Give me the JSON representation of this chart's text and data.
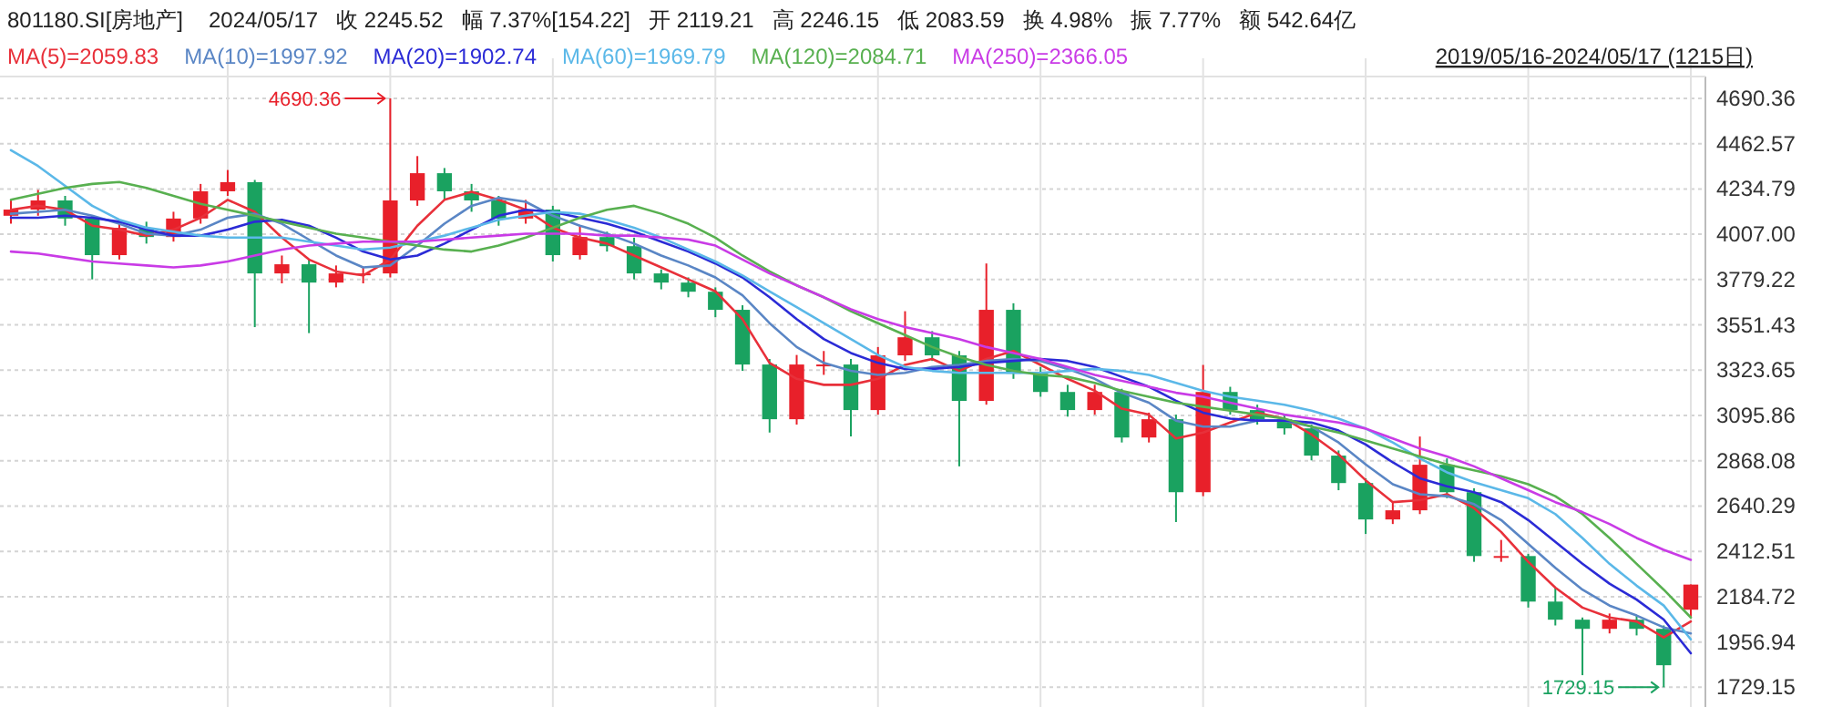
{
  "chart_data": {
    "type": "candlestick",
    "title": "801180.SI[房地产]",
    "subtitle": "2019/05/16-2024/05/17 (1215日)",
    "annotations": [
      "2024/05/17",
      "收 2245.52",
      "幅 7.37%[154.22]",
      "开 2119.21",
      "高 2246.15",
      "低 2083.59",
      "换 4.98%",
      "振 7.77%",
      "额 542.64亿",
      "4690.36",
      "1729.15"
    ],
    "categories": [
      null,
      null,
      null,
      null,
      null,
      null,
      null,
      null,
      null,
      null,
      null,
      null,
      null,
      null,
      null,
      null,
      null,
      null,
      null,
      null,
      null,
      null,
      null,
      null,
      null,
      null,
      null,
      null,
      null,
      null,
      null,
      null,
      null,
      null,
      null,
      null,
      null,
      null,
      null,
      null,
      null,
      null,
      null,
      null,
      null,
      null,
      null,
      null,
      null,
      null,
      null,
      null,
      null,
      null,
      null,
      null,
      null,
      null,
      null,
      null,
      null,
      null,
      null
    ],
    "ohlc": [
      [
        4100,
        4180,
        4060,
        4131
      ],
      [
        4131,
        4230,
        4100,
        4177
      ],
      [
        4177,
        4200,
        4050,
        4086
      ],
      [
        4086,
        4100,
        3780,
        3902
      ],
      [
        3902,
        4080,
        3880,
        4039
      ],
      [
        4039,
        4070,
        3960,
        3993
      ],
      [
        3993,
        4120,
        3970,
        4086
      ],
      [
        4086,
        4260,
        4060,
        4223
      ],
      [
        4223,
        4330,
        4200,
        4269
      ],
      [
        4269,
        4280,
        3540,
        3810
      ],
      [
        3810,
        3900,
        3760,
        3856
      ],
      [
        3856,
        3880,
        3510,
        3764
      ],
      [
        3764,
        3850,
        3740,
        3810
      ],
      [
        3810,
        3840,
        3760,
        3810
      ],
      [
        3810,
        4690.36,
        3790,
        4177
      ],
      [
        4177,
        4400,
        4150,
        4314
      ],
      [
        4314,
        4340,
        4180,
        4223
      ],
      [
        4223,
        4260,
        4120,
        4177
      ],
      [
        4177,
        4200,
        4050,
        4086
      ],
      [
        4086,
        4180,
        4060,
        4131
      ],
      [
        4131,
        4150,
        3870,
        3902
      ],
      [
        3902,
        4050,
        3880,
        3993
      ],
      [
        3993,
        4020,
        3920,
        3947
      ],
      [
        3947,
        3990,
        3780,
        3810
      ],
      [
        3810,
        3830,
        3730,
        3764
      ],
      [
        3764,
        3790,
        3690,
        3718
      ],
      [
        3718,
        3740,
        3590,
        3627
      ],
      [
        3627,
        3650,
        3320,
        3352
      ],
      [
        3352,
        3380,
        3010,
        3077
      ],
      [
        3077,
        3400,
        3050,
        3352
      ],
      [
        3352,
        3420,
        3300,
        3352
      ],
      [
        3352,
        3380,
        2990,
        3123
      ],
      [
        3123,
        3440,
        3100,
        3398
      ],
      [
        3398,
        3620,
        3370,
        3489
      ],
      [
        3489,
        3520,
        3370,
        3398
      ],
      [
        3398,
        3420,
        2840,
        3169
      ],
      [
        3169,
        3860,
        3150,
        3627
      ],
      [
        3627,
        3660,
        3280,
        3306
      ],
      [
        3306,
        3340,
        3190,
        3214
      ],
      [
        3214,
        3250,
        3090,
        3123
      ],
      [
        3123,
        3250,
        3100,
        3214
      ],
      [
        3214,
        3230,
        2960,
        2985
      ],
      [
        2985,
        3110,
        2960,
        3077
      ],
      [
        3077,
        3100,
        2560,
        2710
      ],
      [
        2710,
        3350,
        2690,
        3214
      ],
      [
        3214,
        3240,
        3100,
        3123
      ],
      [
        3123,
        3150,
        3050,
        3077
      ],
      [
        3077,
        3100,
        3000,
        3031
      ],
      [
        3031,
        3050,
        2870,
        2894
      ],
      [
        2894,
        2920,
        2720,
        2756
      ],
      [
        2756,
        2780,
        2500,
        2573
      ],
      [
        2573,
        2660,
        2550,
        2619
      ],
      [
        2619,
        2990,
        2600,
        2848
      ],
      [
        2848,
        2880,
        2680,
        2710
      ],
      [
        2710,
        2730,
        2360,
        2389
      ],
      [
        2389,
        2470,
        2360,
        2389
      ],
      [
        2389,
        2400,
        2130,
        2160
      ],
      [
        2160,
        2230,
        2040,
        2069
      ],
      [
        2069,
        2080,
        1790,
        2023
      ],
      [
        2023,
        2100,
        2000,
        2069
      ],
      [
        2069,
        2090,
        1990,
        2023
      ],
      [
        2023,
        2040,
        1729.15,
        1840
      ],
      [
        2119.21,
        2246.15,
        2083.59,
        2245.52
      ]
    ],
    "series": [
      {
        "name": "MA(5)=2059.83",
        "type": "line",
        "color": "#e8303a",
        "values": [
          4130,
          4150,
          4130,
          4050,
          4030,
          4000,
          4030,
          4090,
          4180,
          4120,
          3990,
          3880,
          3820,
          3800,
          3880,
          4050,
          4180,
          4220,
          4180,
          4130,
          4040,
          3990,
          3960,
          3900,
          3840,
          3780,
          3720,
          3580,
          3360,
          3280,
          3250,
          3250,
          3280,
          3350,
          3380,
          3320,
          3380,
          3420,
          3350,
          3280,
          3220,
          3130,
          3100,
          2980,
          3010,
          3060,
          3110,
          3080,
          3000,
          2900,
          2770,
          2660,
          2670,
          2700,
          2630,
          2510,
          2360,
          2230,
          2130,
          2080,
          2060,
          1980,
          2060
        ]
      },
      {
        "name": "MA(10)=1997.92",
        "type": "line",
        "color": "#5a86c5",
        "values": [
          4110,
          4120,
          4130,
          4100,
          4060,
          4010,
          4000,
          4030,
          4090,
          4110,
          4060,
          3980,
          3900,
          3840,
          3850,
          3950,
          4060,
          4150,
          4190,
          4170,
          4100,
          4050,
          4010,
          3960,
          3900,
          3850,
          3790,
          3700,
          3560,
          3440,
          3360,
          3320,
          3300,
          3310,
          3340,
          3350,
          3370,
          3380,
          3370,
          3330,
          3280,
          3210,
          3160,
          3070,
          3040,
          3040,
          3070,
          3070,
          3040,
          2960,
          2850,
          2750,
          2700,
          2690,
          2650,
          2570,
          2450,
          2330,
          2220,
          2140,
          2090,
          2030,
          2000
        ]
      },
      {
        "name": "MA(20)=1902.74",
        "type": "line",
        "color": "#2b2bd6",
        "values": [
          4090,
          4090,
          4100,
          4090,
          4070,
          4030,
          4000,
          4000,
          4030,
          4070,
          4080,
          4050,
          3990,
          3920,
          3880,
          3900,
          3960,
          4030,
          4100,
          4130,
          4120,
          4090,
          4060,
          4020,
          3970,
          3920,
          3860,
          3790,
          3690,
          3580,
          3480,
          3410,
          3360,
          3330,
          3330,
          3340,
          3360,
          3370,
          3380,
          3370,
          3340,
          3290,
          3240,
          3170,
          3110,
          3080,
          3070,
          3070,
          3060,
          3020,
          2950,
          2860,
          2780,
          2740,
          2710,
          2660,
          2570,
          2460,
          2350,
          2250,
          2170,
          2070,
          1900
        ]
      },
      {
        "name": "MA(60)=1969.79",
        "type": "line",
        "color": "#5bb8e8",
        "values": [
          4430,
          4350,
          4250,
          4150,
          4080,
          4040,
          4020,
          4000,
          3990,
          3990,
          3990,
          3970,
          3950,
          3930,
          3940,
          3970,
          4000,
          4040,
          4080,
          4100,
          4120,
          4110,
          4080,
          4040,
          3990,
          3930,
          3870,
          3800,
          3720,
          3640,
          3560,
          3480,
          3400,
          3340,
          3320,
          3310,
          3310,
          3310,
          3310,
          3320,
          3330,
          3320,
          3300,
          3260,
          3220,
          3190,
          3170,
          3150,
          3120,
          3080,
          3030,
          2960,
          2880,
          2810,
          2760,
          2720,
          2680,
          2600,
          2480,
          2350,
          2240,
          2140,
          1970
        ]
      },
      {
        "name": "MA(120)=2084.71",
        "type": "line",
        "color": "#58b050",
        "values": [
          4180,
          4210,
          4240,
          4260,
          4270,
          4240,
          4200,
          4160,
          4130,
          4100,
          4070,
          4040,
          4010,
          3990,
          3970,
          3950,
          3930,
          3920,
          3950,
          3990,
          4040,
          4090,
          4130,
          4150,
          4110,
          4060,
          3990,
          3900,
          3820,
          3750,
          3690,
          3620,
          3560,
          3500,
          3440,
          3390,
          3350,
          3320,
          3300,
          3290,
          3260,
          3220,
          3190,
          3160,
          3140,
          3120,
          3100,
          3080,
          3040,
          3010,
          2970,
          2930,
          2890,
          2850,
          2820,
          2790,
          2750,
          2690,
          2600,
          2480,
          2350,
          2220,
          2080
        ]
      },
      {
        "name": "MA(250)=2366.05",
        "type": "line",
        "color": "#c93be6",
        "values": [
          3920,
          3910,
          3890,
          3870,
          3860,
          3850,
          3840,
          3850,
          3870,
          3900,
          3930,
          3950,
          3960,
          3970,
          3970,
          3970,
          3980,
          3990,
          4000,
          4010,
          4010,
          4010,
          4000,
          4000,
          3990,
          3980,
          3950,
          3880,
          3810,
          3750,
          3690,
          3630,
          3580,
          3540,
          3510,
          3480,
          3440,
          3410,
          3380,
          3340,
          3300,
          3270,
          3240,
          3210,
          3190,
          3160,
          3130,
          3100,
          3080,
          3060,
          3030,
          2980,
          2930,
          2890,
          2840,
          2780,
          2720,
          2660,
          2610,
          2550,
          2480,
          2420,
          2370
        ]
      }
    ],
    "ylim": [
      1630,
      4800
    ],
    "yticks": [
      1729.15,
      1956.94,
      2184.72,
      2412.51,
      2640.29,
      2868.08,
      3095.86,
      3323.65,
      3551.43,
      3779.22,
      {
        "value": 4007,
        "label": "4007.00"
      },
      4234.79,
      4462.57,
      4690.36
    ],
    "grid": true,
    "legend": "top"
  }
}
